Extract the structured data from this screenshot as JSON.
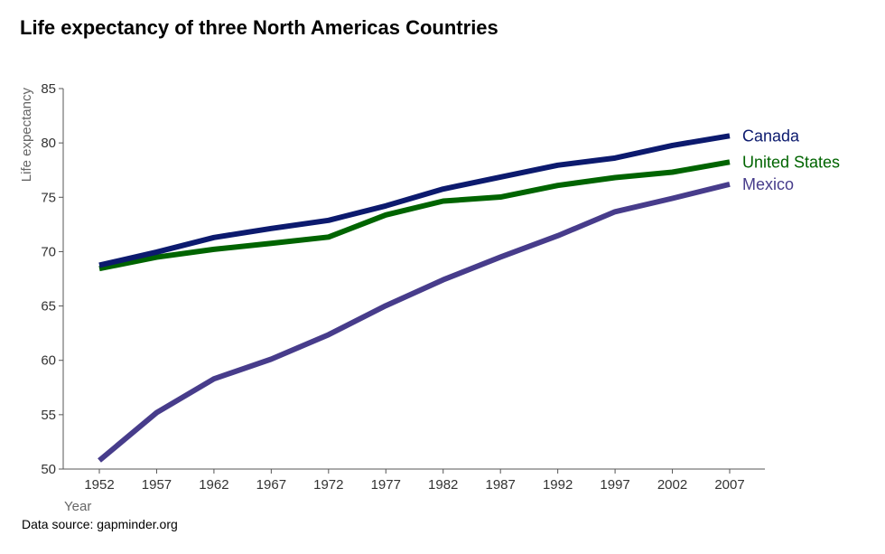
{
  "caption": "Data source: gapminder.org",
  "chart_data": {
    "type": "line",
    "title": "Life expectancy  of three North Americas Countries",
    "xlabel": "Year",
    "ylabel": "Life expectancy",
    "x": [
      1952,
      1957,
      1962,
      1967,
      1972,
      1977,
      1982,
      1987,
      1992,
      1997,
      2002,
      2007
    ],
    "ylim": [
      50,
      85
    ],
    "yticks": [
      50,
      55,
      60,
      65,
      70,
      75,
      80,
      85
    ],
    "grid": false,
    "legend": "direct labels at line ends",
    "series": [
      {
        "name": "Canada",
        "color": "#0c1a6e",
        "values": [
          68.75,
          69.96,
          71.3,
          72.13,
          72.88,
          74.21,
          75.76,
          76.86,
          77.95,
          78.61,
          79.77,
          80.65
        ]
      },
      {
        "name": "United States",
        "color": "#006400",
        "values": [
          68.44,
          69.49,
          70.21,
          70.76,
          71.34,
          73.38,
          74.65,
          75.02,
          76.09,
          76.81,
          77.31,
          78.24
        ]
      },
      {
        "name": "Mexico",
        "color": "#473c8b",
        "values": [
          50.79,
          55.19,
          58.3,
          60.11,
          62.36,
          65.03,
          67.41,
          69.5,
          71.46,
          73.67,
          74.9,
          76.2
        ]
      }
    ]
  }
}
